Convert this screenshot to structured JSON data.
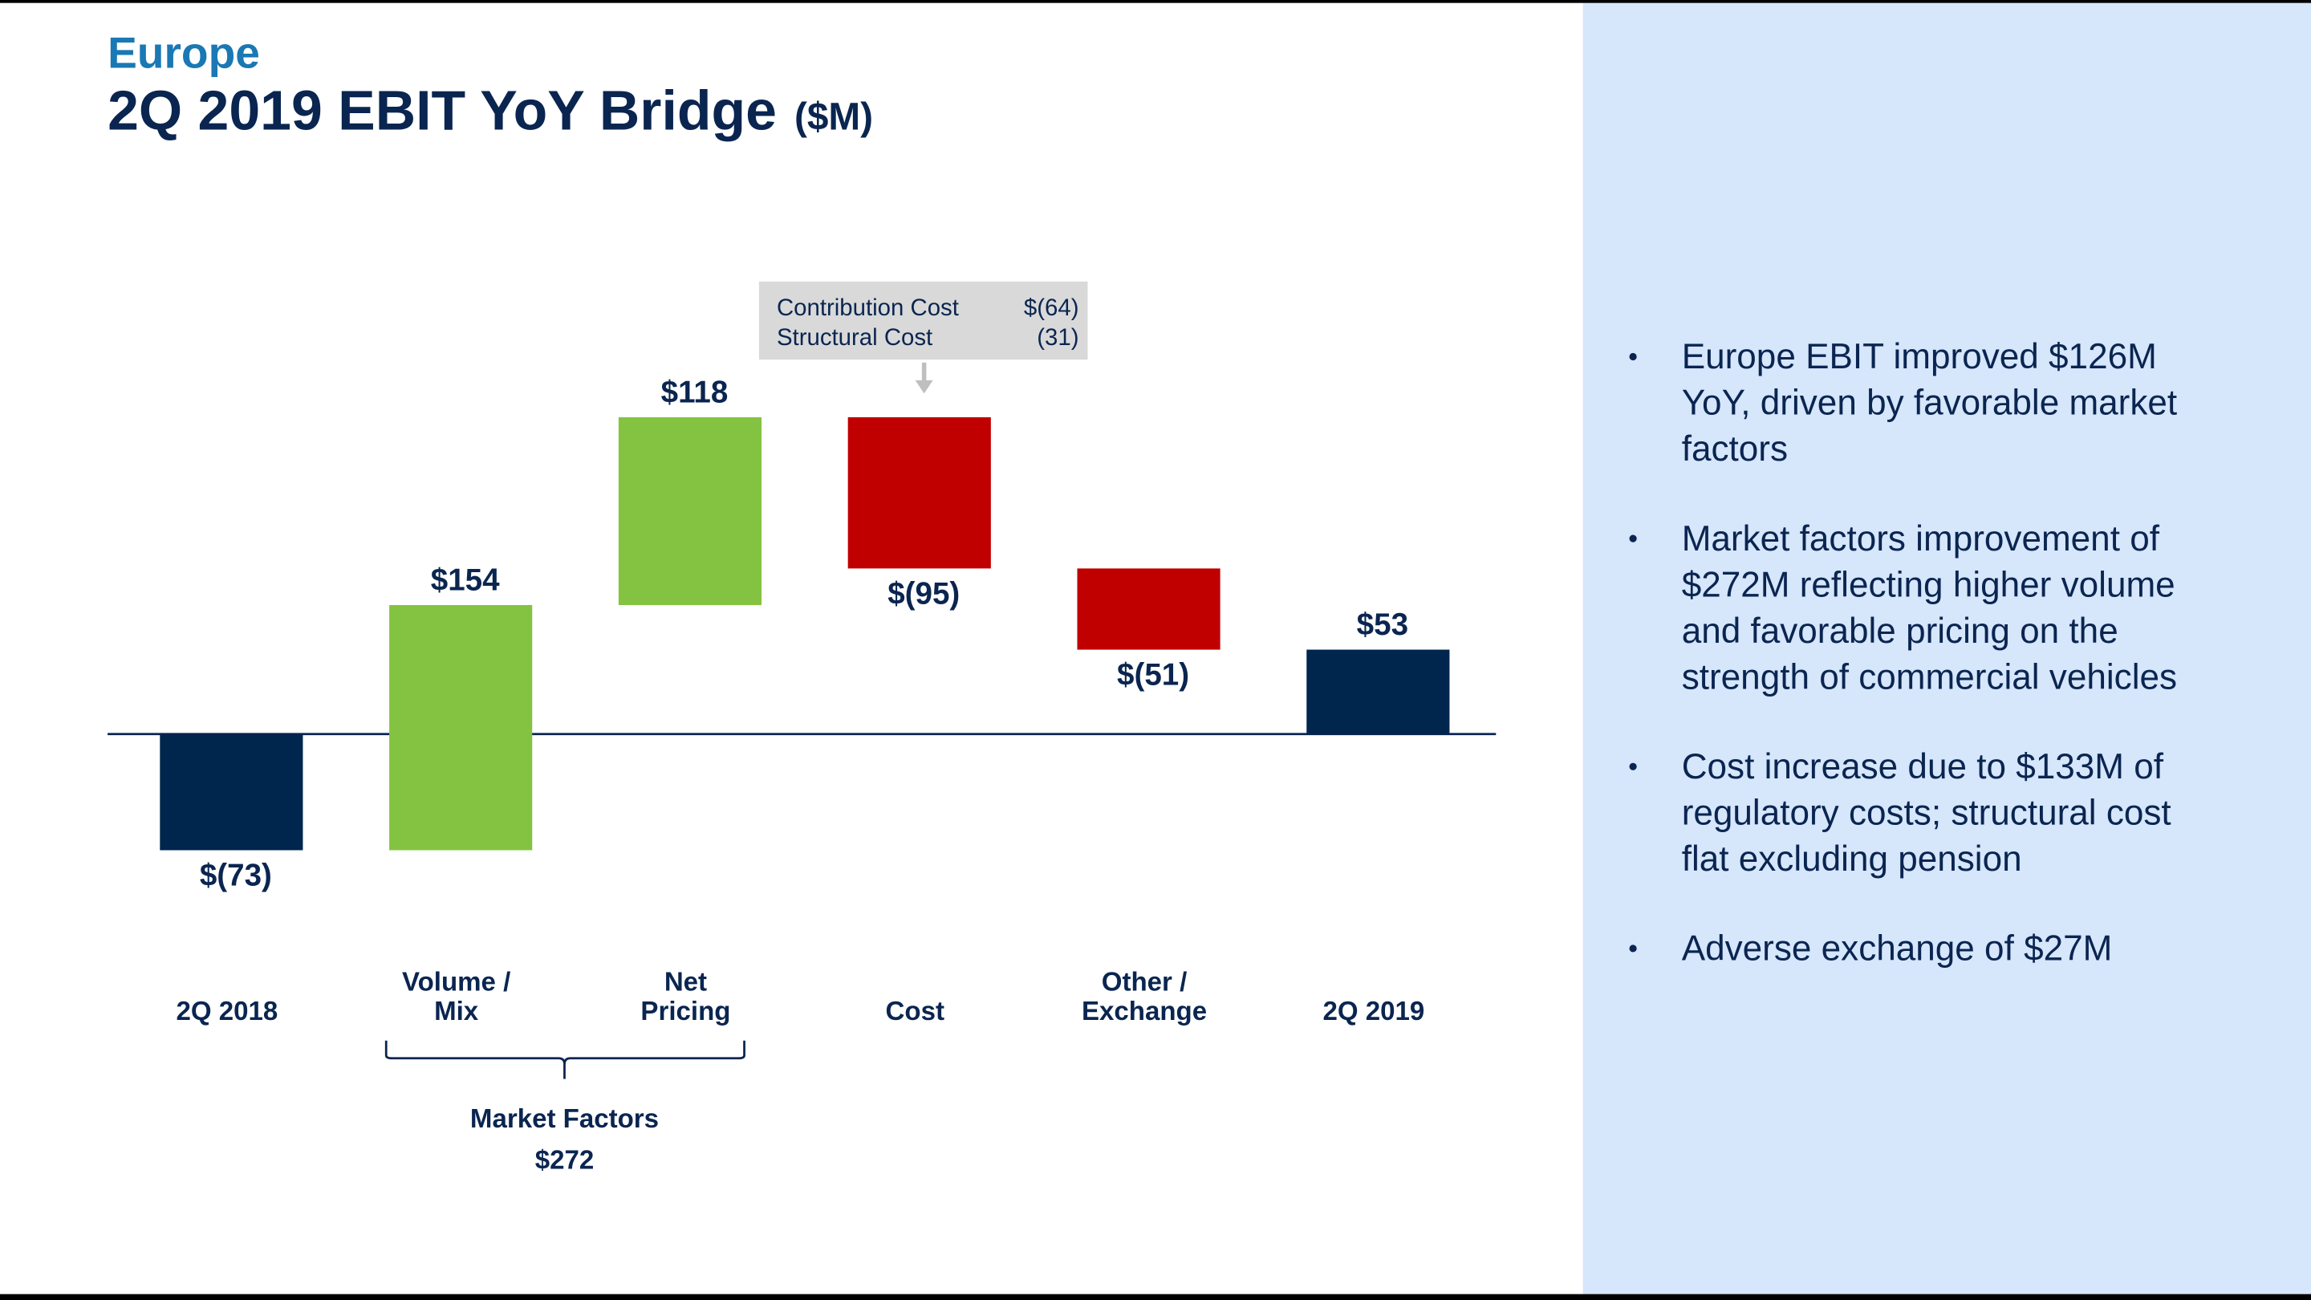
{
  "header": {
    "region": "Europe",
    "title": "2Q 2019 EBIT YoY Bridge",
    "unit": "($M)"
  },
  "chart_data": {
    "type": "waterfall",
    "categories": [
      [
        "2Q 2018"
      ],
      [
        "Volume /",
        "Mix"
      ],
      [
        "Net",
        "Pricing"
      ],
      [
        "Cost"
      ],
      [
        "Other /",
        "Exchange"
      ],
      [
        "2Q 2019"
      ]
    ],
    "values": [
      -73,
      154,
      118,
      -95,
      -51,
      53
    ],
    "value_labels": [
      "$(73)",
      "$154",
      "$118",
      "$(95)",
      "$(51)",
      "$53"
    ],
    "colors": [
      "#00264d",
      "#84c341",
      "#84c341",
      "#c00000",
      "#c00000",
      "#00264d"
    ]
  },
  "cost_breakdown": [
    {
      "name": "Contribution Cost",
      "amount": "$(64)"
    },
    {
      "name": "Structural Cost",
      "amount": "(31)"
    }
  ],
  "market_factors": {
    "label": "Market Factors",
    "amount": "$272"
  },
  "bullets": [
    [
      "Europe EBIT improved $126M",
      "YoY, driven by favorable market",
      "factors"
    ],
    [
      "Market factors improvement of",
      "$272M reflecting higher volume",
      "and favorable pricing on the",
      "strength of commercial vehicles"
    ],
    [
      "Cost increase due to $133M of",
      "regulatory costs; structural cost",
      "flat excluding pension"
    ],
    [
      "Adverse exchange of $27M"
    ]
  ]
}
